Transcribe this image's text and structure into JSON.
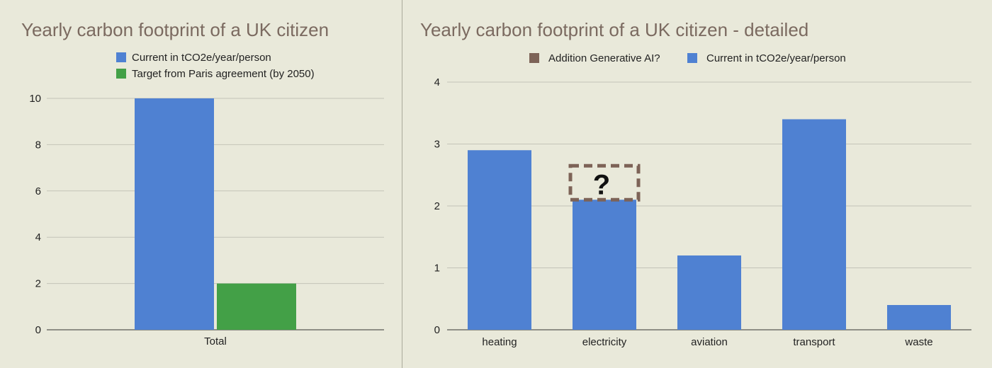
{
  "chart_data": [
    {
      "type": "bar",
      "title": "Yearly carbon footprint of a UK citizen",
      "categories": [
        "Total"
      ],
      "series": [
        {
          "name": "Current in tCO2e/year/person",
          "values": [
            10
          ],
          "color": "#4f81d2"
        },
        {
          "name": "Target from Paris agreement (by 2050)",
          "values": [
            2
          ],
          "color": "#43a047"
        }
      ],
      "ylim": [
        0,
        10
      ],
      "yticks": [
        0,
        2,
        4,
        6,
        8,
        10
      ],
      "grid": true,
      "legend": "top"
    },
    {
      "type": "bar",
      "title": "Yearly carbon footprint of a UK citizen - detailed",
      "categories": [
        "heating",
        "electricity",
        "aviation",
        "transport",
        "waste"
      ],
      "series": [
        {
          "name": "Addition Generative AI?",
          "values": [
            null,
            null,
            null,
            null,
            null
          ],
          "color": "#7d6357"
        },
        {
          "name": "Current in tCO2e/year/person",
          "values": [
            2.9,
            2.1,
            1.2,
            3.4,
            0.4
          ],
          "color": "#4f81d2"
        }
      ],
      "ylim": [
        0,
        4
      ],
      "yticks": [
        0,
        1,
        2,
        3,
        4
      ],
      "grid": true,
      "legend": "top",
      "annotation": {
        "text": "?",
        "category": "electricity"
      }
    }
  ]
}
